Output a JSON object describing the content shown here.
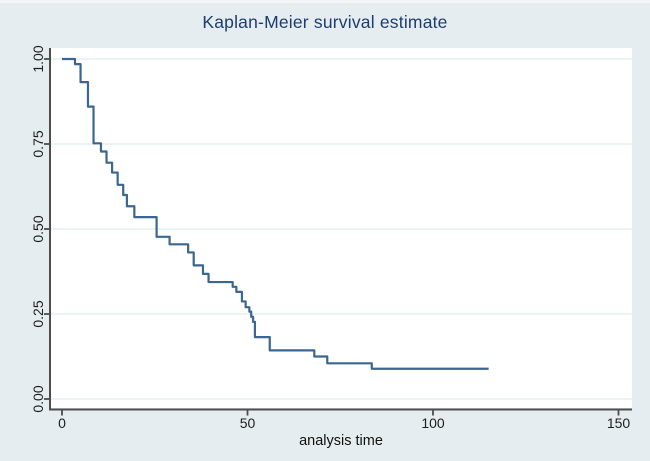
{
  "chart_data": {
    "type": "line",
    "subtype": "kaplan-meier-step",
    "title": "Kaplan-Meier survival estimate",
    "xlabel": "analysis time",
    "ylabel": "",
    "xlim": [
      0,
      156
    ],
    "ylim": [
      0.0,
      1.0
    ],
    "xticks": [
      0,
      50,
      100,
      150
    ],
    "ytick_values": [
      0.0,
      0.25,
      0.5,
      0.75,
      1.0
    ],
    "ytick_labels": [
      "0.00",
      "0.25",
      "0.50",
      "0.75",
      "1.00"
    ],
    "grid": "horizontal gridlines at y ticks",
    "legend": "none",
    "series": [
      {
        "name": "survival estimate",
        "color": "#3a6690",
        "note": "step function; each pair is [time, survival-after-drop], curve flat until next time",
        "steps": [
          [
            0,
            1.0
          ],
          [
            3.5,
            0.985
          ],
          [
            5,
            0.932
          ],
          [
            7,
            0.86
          ],
          [
            8.5,
            0.752
          ],
          [
            10.5,
            0.728
          ],
          [
            12,
            0.695
          ],
          [
            13.5,
            0.666
          ],
          [
            15,
            0.63
          ],
          [
            16.5,
            0.6
          ],
          [
            17.5,
            0.567
          ],
          [
            19.5,
            0.535
          ],
          [
            25.5,
            0.477
          ],
          [
            29,
            0.455
          ],
          [
            34,
            0.431
          ],
          [
            35.5,
            0.393
          ],
          [
            38,
            0.368
          ],
          [
            39.5,
            0.344
          ],
          [
            46,
            0.33
          ],
          [
            47,
            0.315
          ],
          [
            48.5,
            0.287
          ],
          [
            49.5,
            0.27
          ],
          [
            50.5,
            0.257
          ],
          [
            51,
            0.242
          ],
          [
            51.5,
            0.227
          ],
          [
            52,
            0.182
          ],
          [
            56,
            0.143
          ],
          [
            68,
            0.125
          ],
          [
            71.5,
            0.105
          ],
          [
            83.5,
            0.089
          ]
        ],
        "end_time": 115
      }
    ]
  },
  "colors": {
    "figure_bg": "#e5edf0",
    "plot_bg": "#ffffff",
    "gridline": "#e3f0f1",
    "axis": "#4d4d4d",
    "title_text": "#1d3d70",
    "tick_text": "#1e1e1e",
    "curve": "#3a6690"
  }
}
